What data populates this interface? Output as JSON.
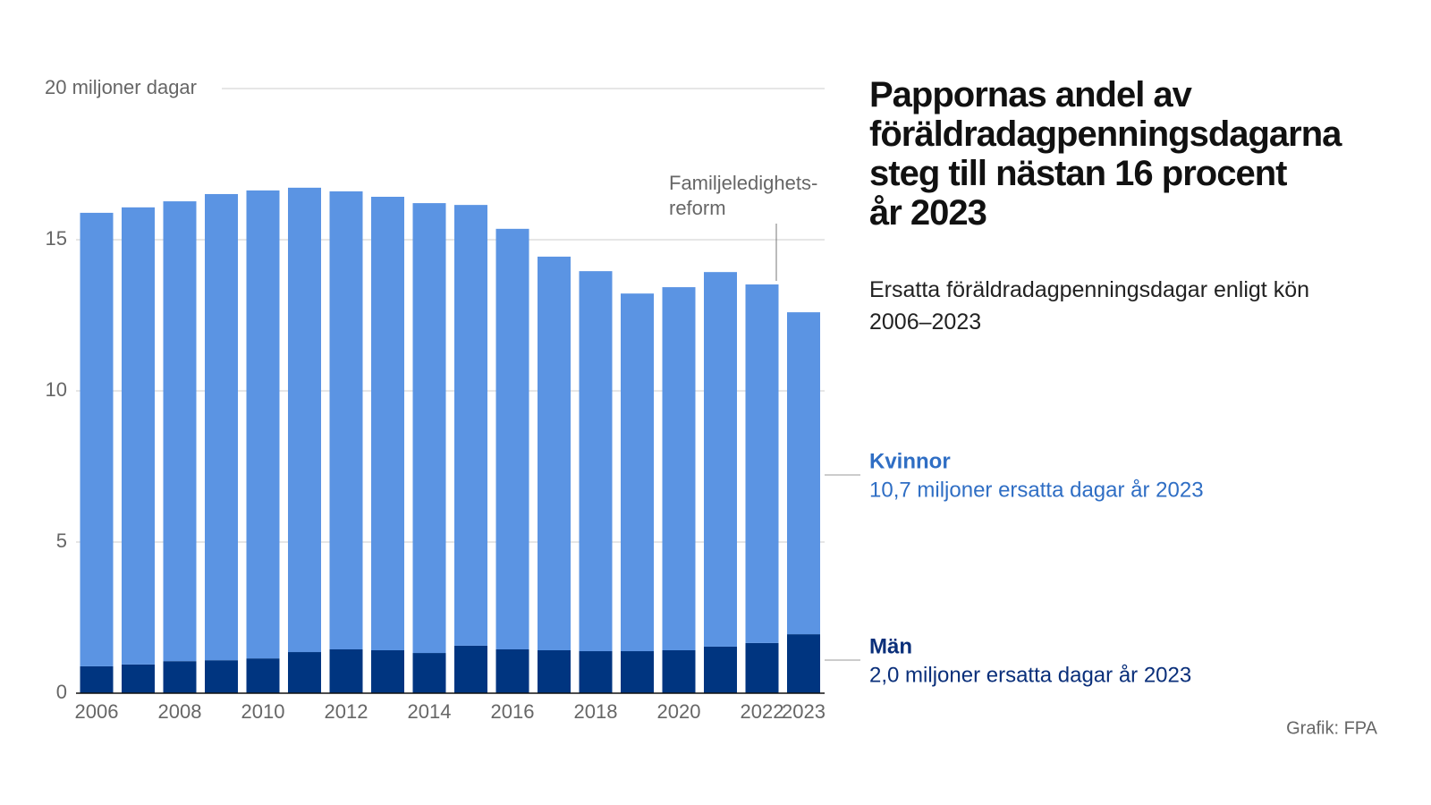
{
  "chart_data": {
    "type": "stacked_bar",
    "title_lines": [
      "Pappornas andel av",
      "föräldradagpenningsdagarna",
      "steg till nästan 16 procent",
      "år 2023"
    ],
    "subtitle": "Ersatta föräldradagpenningsdagar enligt kön 2006–2023",
    "categories": [
      "2006",
      null,
      "2008",
      null,
      "2010",
      null,
      "2012",
      null,
      "2014",
      null,
      "2016",
      null,
      "2018",
      null,
      "2020",
      null,
      "2022",
      "2023"
    ],
    "series": [
      {
        "name": "Män",
        "color": "#003580",
        "label_color": "#0a2f7a",
        "description": "2,0 miljoner ersatta dagar år 2023",
        "values": [
          0.89,
          0.95,
          1.06,
          1.09,
          1.15,
          1.36,
          1.45,
          1.42,
          1.33,
          1.57,
          1.45,
          1.42,
          1.39,
          1.39,
          1.42,
          1.54,
          1.66,
          1.95
        ]
      },
      {
        "name": "Kvinnor",
        "color": "#5b94e3",
        "label_color": "#2f6ec4",
        "description": "10,7 miljoner ersatta dagar år 2023",
        "values": [
          15.0,
          15.12,
          15.21,
          15.42,
          15.48,
          15.36,
          15.15,
          15.0,
          14.88,
          14.58,
          13.91,
          13.02,
          12.57,
          11.83,
          12.01,
          12.39,
          11.86,
          10.65
        ]
      }
    ],
    "ylim": [
      0,
      20
    ],
    "yticks": [
      0,
      5,
      10,
      15,
      {
        "value": 20,
        "label": "20 miljoner dagar"
      }
    ],
    "grid": true,
    "annotation": {
      "lines": [
        "Familjeledighets-",
        "reform"
      ],
      "category_index": 16
    },
    "source": "Grafik: FPA"
  }
}
